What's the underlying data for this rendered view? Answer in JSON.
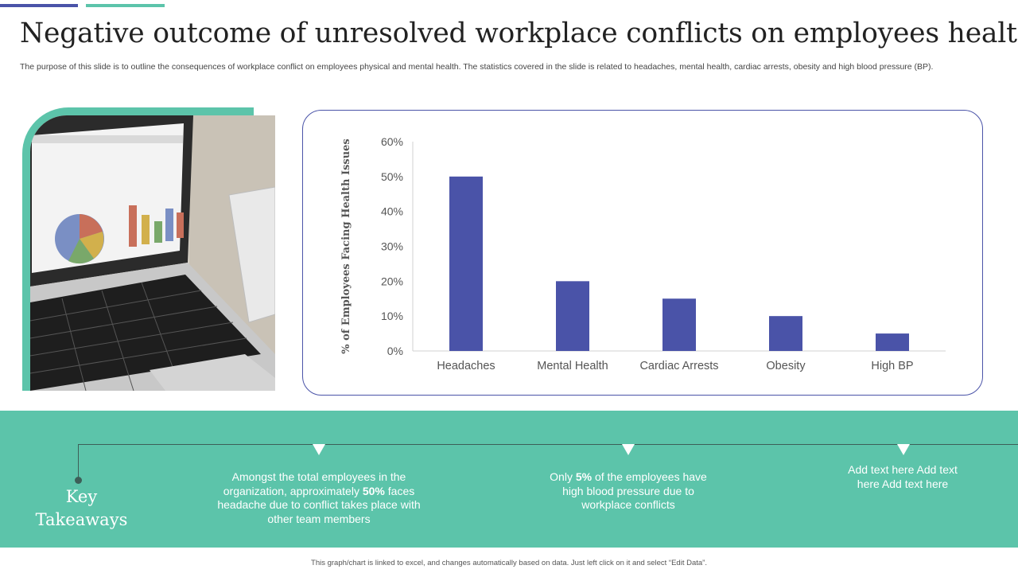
{
  "title": "Negative outcome of unresolved workplace conflicts on employees health",
  "subtitle": "The purpose of this slide is to outline the consequences of workplace conflict on employees physical and mental health. The statistics covered in the slide is related to headaches, mental health, cardiac arrests, obesity and high blood pressure (BP).",
  "colors": {
    "accent_teal": "#5cc4aa",
    "accent_blue": "#4a53a8",
    "bar": "#4a53a8"
  },
  "chart_data": {
    "type": "bar",
    "categories": [
      "Headaches",
      "Mental Health",
      "Cardiac Arrests",
      "Obesity",
      "High BP"
    ],
    "values": [
      50,
      20,
      15,
      10,
      5
    ],
    "ylabel": "% of Employees Facing Health Issues",
    "ylim": [
      0,
      60
    ],
    "yticks": [
      "0%",
      "10%",
      "20%",
      "30%",
      "40%",
      "50%",
      "60%"
    ],
    "grid": false,
    "legend": "none"
  },
  "takeaways": {
    "heading": "Key Takeaways",
    "item1": {
      "before": "Amongst the total employees in the organization, approximately ",
      "bold": "50%",
      "after": " faces headache due to conflict takes place with other team members"
    },
    "item2": {
      "before": "Only ",
      "bold": "5%",
      "after": " of the employees have high blood pressure due to workplace conflicts"
    },
    "item3": "Add text here Add text here Add text here"
  },
  "footer": "This graph/chart is linked to excel, and changes automatically based on data. Just left click on it and select “Edit Data”."
}
